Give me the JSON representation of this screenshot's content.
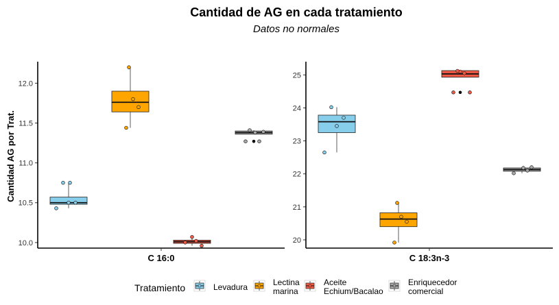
{
  "chart_data": {
    "type": "box",
    "title": "Cantidad de AG en cada tratamiento",
    "subtitle": "Datos no normales",
    "ylabel": "Cantidad AG por Trat.",
    "legend": {
      "title": "Tratamiento",
      "position": "bottom",
      "entries": [
        {
          "label_lines": [
            "Levadura"
          ],
          "color": "#87CEEB"
        },
        {
          "label_lines": [
            "Lectina",
            "marina"
          ],
          "color": "#FFA500"
        },
        {
          "label_lines": [
            "Aceite",
            "Echium/Bacalao"
          ],
          "color": "#F25A45"
        },
        {
          "label_lines": [
            "Enriquecedor",
            "comercial"
          ],
          "color": "#A8A8A8"
        }
      ]
    },
    "panels": [
      {
        "facet": "C 16:0",
        "ylim": [
          9.93,
          12.27
        ],
        "yticks": [
          10.0,
          10.5,
          11.0,
          11.5,
          12.0
        ],
        "ytick_labels": [
          "10.0",
          "10.5",
          "11.0",
          "11.5",
          "12.0"
        ],
        "boxes": [
          {
            "group": "Levadura",
            "whisker_low": 10.43,
            "q1": 10.48,
            "median": 10.5,
            "q3": 10.57,
            "whisker_high": 10.75,
            "points": [
              10.43,
              10.5,
              10.5,
              10.75,
              10.75
            ]
          },
          {
            "group": "Lectina marina",
            "whisker_low": 11.44,
            "q1": 11.64,
            "median": 11.76,
            "q3": 11.9,
            "whisker_high": 12.2,
            "points": [
              11.44,
              11.7,
              11.8,
              12.2
            ]
          },
          {
            "group": "Aceite Echium/Bacalao",
            "whisker_low": 9.96,
            "q1": 9.99,
            "median": 10.01,
            "q3": 10.03,
            "whisker_high": 10.07,
            "points": [
              9.96,
              10.0,
              10.02,
              10.07
            ]
          },
          {
            "group": "Enriquecedor comercial",
            "whisker_low": 11.36,
            "q1": 11.36,
            "median": 11.38,
            "q3": 11.4,
            "whisker_high": 11.41,
            "outliers": [
              11.27,
              11.27
            ],
            "points": [
              11.27,
              11.27,
              11.38,
              11.39,
              11.41
            ]
          }
        ]
      },
      {
        "facet": "C 18:3n-3",
        "ylim": [
          19.75,
          25.4
        ],
        "yticks": [
          20,
          21,
          22,
          23,
          24,
          25
        ],
        "ytick_labels": [
          "20",
          "21",
          "22",
          "23",
          "24",
          "25"
        ],
        "boxes": [
          {
            "group": "Levadura",
            "whisker_low": 22.65,
            "q1": 23.25,
            "median": 23.58,
            "q3": 23.78,
            "whisker_high": 24.02,
            "points": [
              22.65,
              23.45,
              23.7,
              24.02
            ]
          },
          {
            "group": "Lectina marina",
            "whisker_low": 19.92,
            "q1": 20.4,
            "median": 20.63,
            "q3": 20.82,
            "whisker_high": 21.12,
            "points": [
              19.92,
              20.55,
              20.7,
              21.12
            ]
          },
          {
            "group": "Aceite Echium/Bacalao",
            "whisker_low": 24.93,
            "q1": 24.93,
            "median": 25.03,
            "q3": 25.13,
            "whisker_high": 25.13,
            "outliers": [
              24.47,
              24.47
            ],
            "points": [
              24.47,
              24.47,
              25.05,
              25.1,
              25.12
            ]
          },
          {
            "group": "Enriquecedor comercial",
            "whisker_low": 22.02,
            "q1": 22.08,
            "median": 22.13,
            "q3": 22.18,
            "whisker_high": 22.2,
            "points": [
              22.02,
              22.1,
              22.18,
              22.2
            ]
          }
        ]
      }
    ]
  }
}
